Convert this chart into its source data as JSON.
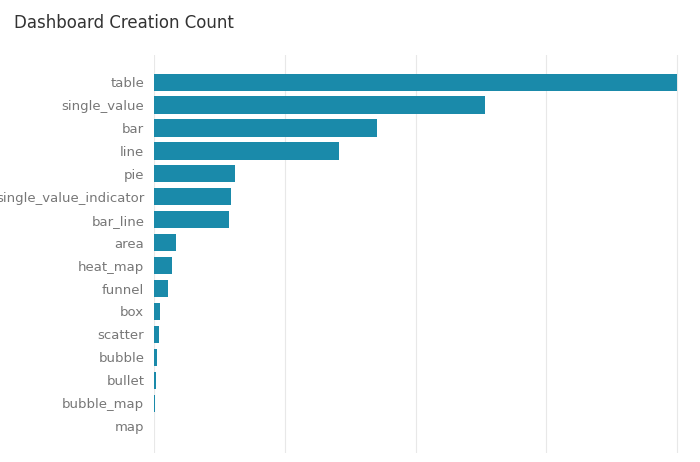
{
  "title": "Dashboard Creation Count",
  "categories": [
    "table",
    "single_value",
    "bar",
    "line",
    "pie",
    "single_value_indicator",
    "bar_line",
    "area",
    "heat_map",
    "funnel",
    "box",
    "scatter",
    "bubble",
    "bullet",
    "bubble_map",
    "map"
  ],
  "values": [
    680,
    430,
    290,
    240,
    105,
    100,
    97,
    28,
    24,
    18,
    8,
    6,
    4,
    3,
    1,
    0.5
  ],
  "bar_color": "#1a8aaa",
  "background_color": "#ffffff",
  "title_fontsize": 12,
  "label_fontsize": 9.5,
  "grid_color": "#e8e8e8",
  "label_color": "#777777",
  "title_color": "#333333"
}
